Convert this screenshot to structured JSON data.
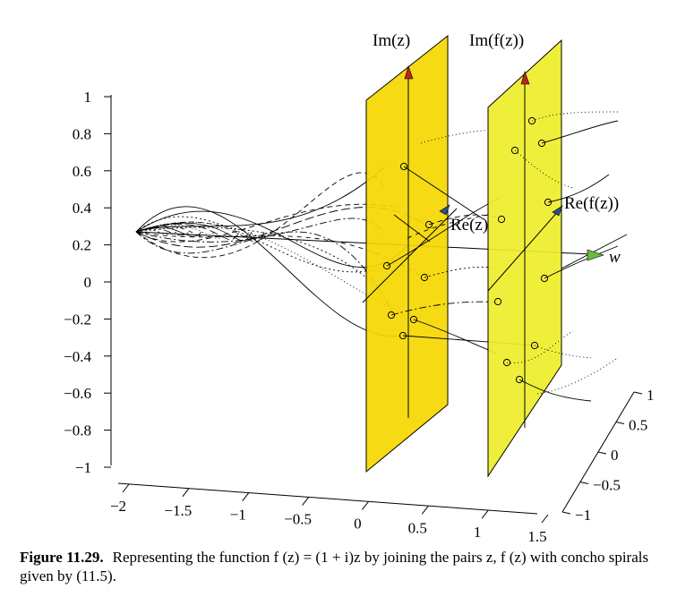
{
  "chart_data": {
    "type": "3d-curves",
    "title": "",
    "x_axis": {
      "label": "",
      "ticks": [
        -2,
        -1.5,
        -1,
        -0.5,
        0,
        0.5,
        1,
        1.5
      ],
      "tick_labels": [
        "−2",
        "−1.5",
        "−1",
        "−0.5",
        "0",
        "0.5",
        "1",
        "1.5"
      ],
      "range": [
        -2,
        1.5
      ]
    },
    "y_axis": {
      "label": "",
      "ticks": [
        -1,
        -0.5,
        0,
        0.5,
        1
      ],
      "tick_labels": [
        "−1",
        "−0.5",
        "0",
        "0.5",
        "1"
      ],
      "range": [
        -1,
        1
      ]
    },
    "z_axis": {
      "label": "",
      "ticks": [
        -1,
        -0.8,
        -0.6,
        -0.4,
        -0.2,
        0,
        0.2,
        0.4,
        0.6,
        0.8,
        1
      ],
      "tick_labels": [
        "−1",
        "−0.8",
        "−0.6",
        "−0.4",
        "−0.2",
        "0",
        "0.2",
        "0.4",
        "0.6",
        "0.8",
        "1"
      ],
      "range": [
        -1,
        1
      ]
    },
    "planes": [
      {
        "name": "z-plane",
        "x_position": 0,
        "color": "#f5d800",
        "axis_labels": {
          "vertical": "Im(z)",
          "horizontal": "Re(z)"
        }
      },
      {
        "name": "w-plane",
        "x_position": 1,
        "color": "#eeee2a",
        "axis_labels": {
          "vertical": "Im(f(z))",
          "horizontal": "Re(f(z))"
        }
      }
    ],
    "w_axis_label": "w",
    "function": "f(z) = (1 + i)z",
    "grid": false
  },
  "caption": {
    "label": "Figure 11.29.",
    "text": "Representing the function f (z) = (1 + i)z by joining the pairs z, f (z) with concho spirals given by (11.5)."
  }
}
